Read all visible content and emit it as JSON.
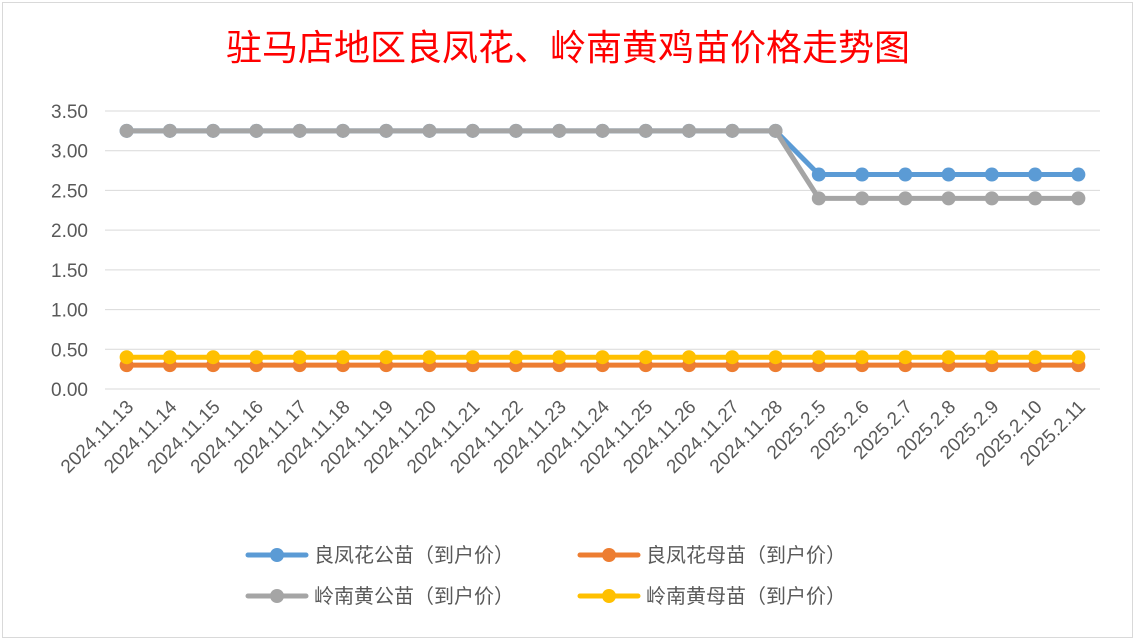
{
  "chart_data": {
    "type": "line",
    "title": "驻马店地区良凤花、岭南黄鸡苗价格走势图",
    "xlabel": "",
    "ylabel": "",
    "categories": [
      "2024.11.13",
      "2024.11.14",
      "2024.11.15",
      "2024.11.16",
      "2024.11.17",
      "2024.11.18",
      "2024.11.19",
      "2024.11.20",
      "2024.11.21",
      "2024.11.22",
      "2024.11.23",
      "2024.11.24",
      "2024.11.25",
      "2024.11.26",
      "2024.11.27",
      "2024.11.28",
      "2025.2.5",
      "2025.2.6",
      "2025.2.7",
      "2025.2.8",
      "2025.2.9",
      "2025.2.10",
      "2025.2.11"
    ],
    "yticks": [
      "0.00",
      "0.50",
      "1.00",
      "1.50",
      "2.00",
      "2.50",
      "3.00",
      "3.50"
    ],
    "ylim": [
      0,
      3.5
    ],
    "grid": true,
    "legend_position": "bottom",
    "series": [
      {
        "name": "良凤花公苗（到户价）",
        "color": "#5b9bd5",
        "values": [
          3.25,
          3.25,
          3.25,
          3.25,
          3.25,
          3.25,
          3.25,
          3.25,
          3.25,
          3.25,
          3.25,
          3.25,
          3.25,
          3.25,
          3.25,
          3.25,
          2.7,
          2.7,
          2.7,
          2.7,
          2.7,
          2.7,
          2.7
        ]
      },
      {
        "name": "良凤花母苗（到户价）",
        "color": "#ed7d31",
        "values": [
          0.3,
          0.3,
          0.3,
          0.3,
          0.3,
          0.3,
          0.3,
          0.3,
          0.3,
          0.3,
          0.3,
          0.3,
          0.3,
          0.3,
          0.3,
          0.3,
          0.3,
          0.3,
          0.3,
          0.3,
          0.3,
          0.3,
          0.3
        ]
      },
      {
        "name": "岭南黄公苗（到户价）",
        "color": "#a5a5a5",
        "values": [
          3.25,
          3.25,
          3.25,
          3.25,
          3.25,
          3.25,
          3.25,
          3.25,
          3.25,
          3.25,
          3.25,
          3.25,
          3.25,
          3.25,
          3.25,
          3.25,
          2.4,
          2.4,
          2.4,
          2.4,
          2.4,
          2.4,
          2.4
        ]
      },
      {
        "name": "岭南黄母苗（到户价）",
        "color": "#ffc000",
        "values": [
          0.4,
          0.4,
          0.4,
          0.4,
          0.4,
          0.4,
          0.4,
          0.4,
          0.4,
          0.4,
          0.4,
          0.4,
          0.4,
          0.4,
          0.4,
          0.4,
          0.4,
          0.4,
          0.4,
          0.4,
          0.4,
          0.4,
          0.4
        ]
      }
    ]
  },
  "colors": {
    "title": "#ff0000",
    "gridline": "#d9d9d9",
    "tick_text": "#595959"
  }
}
